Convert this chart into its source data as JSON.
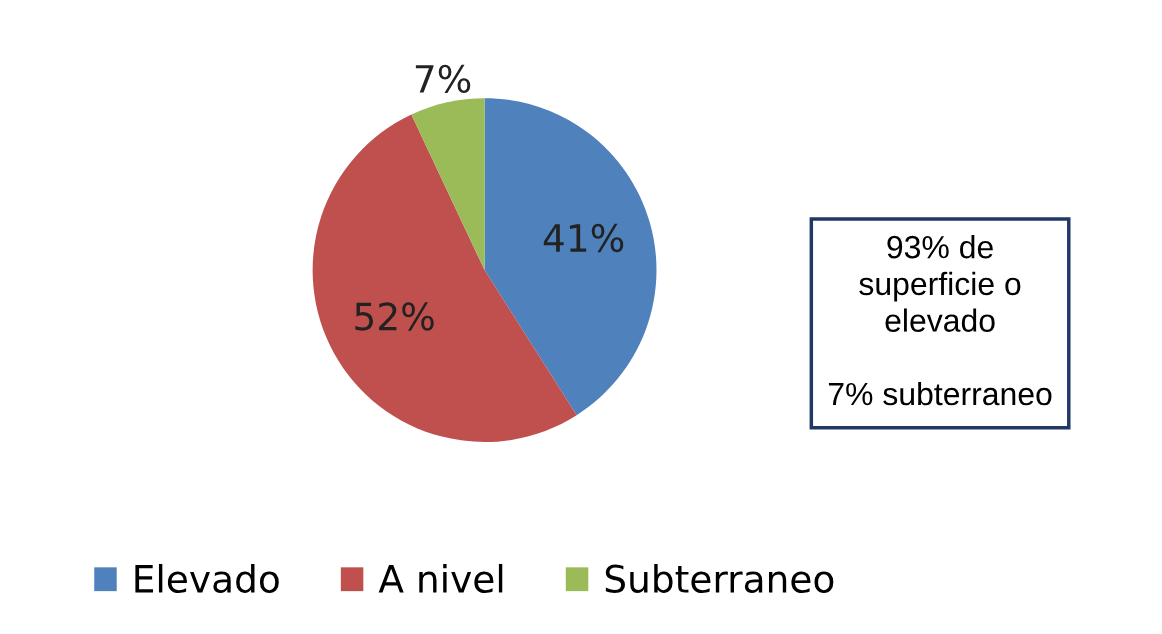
{
  "chart_data": {
    "type": "pie",
    "categories": [
      "Elevado",
      "A nivel",
      "Subterraneo"
    ],
    "values": [
      41,
      52,
      7
    ],
    "colors": [
      "#4f81bd",
      "#c0504d",
      "#9bbb59"
    ],
    "value_labels": [
      "41%",
      "52%",
      "7%"
    ],
    "legend": "bottom",
    "annotations": [
      "93% de\nsuperficie o\nelevado\n\n7% subterraneo"
    ]
  }
}
